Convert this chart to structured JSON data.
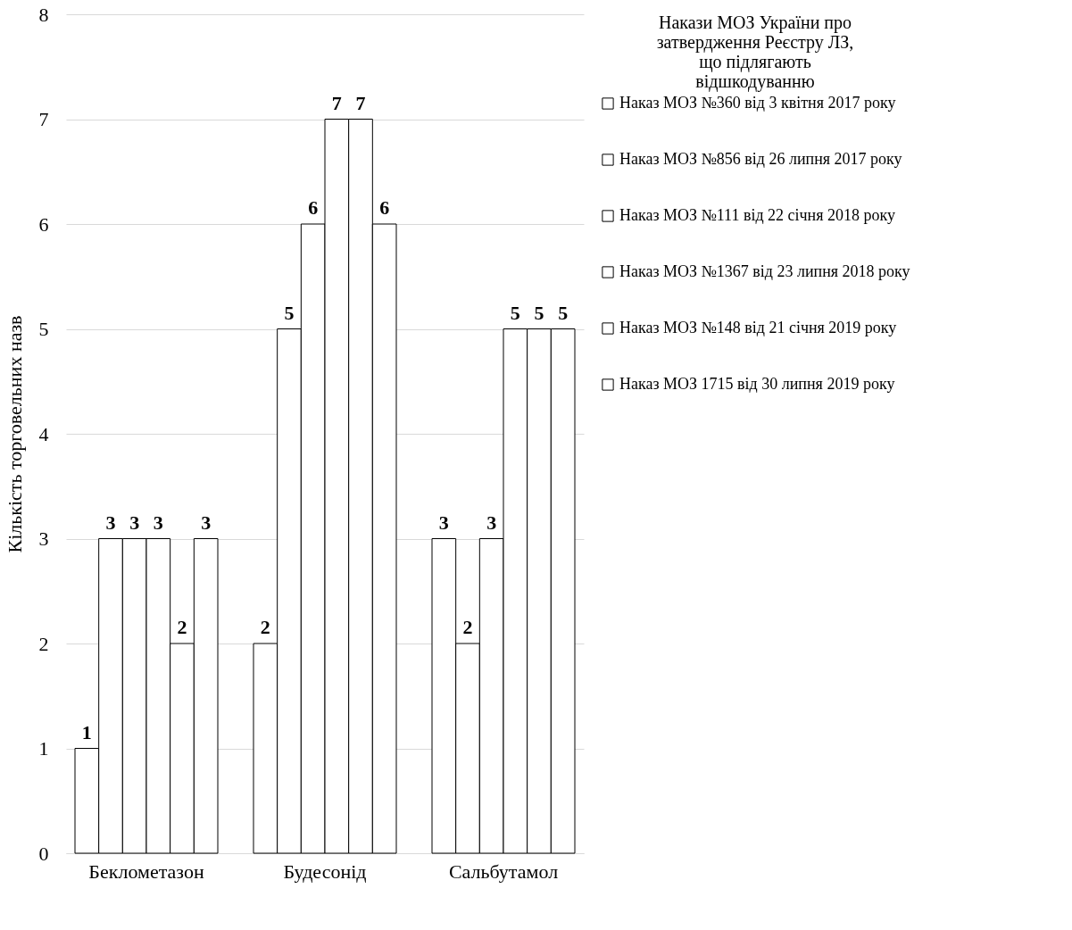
{
  "chart_data": {
    "type": "bar",
    "ylabel": "Кількість торговельних назв",
    "legend_title": "Накази МОЗ України про затвердження Реєстру ЛЗ, що підлягають відшкодуванню",
    "categories": [
      "Беклометазон",
      "Будесонід",
      "Сальбутамол"
    ],
    "series": [
      {
        "name": "Наказ МОЗ №360 від 3 квітня 2017 року",
        "color": "#ffffff",
        "values": [
          1,
          2,
          3
        ]
      },
      {
        "name": "Наказ МОЗ №856 від 26 липня 2017 року",
        "color": "#ffffff",
        "values": [
          3,
          5,
          2
        ]
      },
      {
        "name": "Наказ МОЗ №111 від 22 січня 2018 року",
        "color": "#ffffff",
        "values": [
          3,
          6,
          3
        ]
      },
      {
        "name": "Наказ МОЗ №1367 від 23 липня 2018 року",
        "color": "#ffffff",
        "values": [
          3,
          7,
          5
        ]
      },
      {
        "name": "Наказ МОЗ №148 від 21 січня 2019 року",
        "color": "#ffffff",
        "values": [
          2,
          7,
          5
        ]
      },
      {
        "name": "Наказ МОЗ 1715 від 30 липня 2019 року",
        "color": "#ffffff",
        "values": [
          3,
          6,
          5
        ]
      }
    ],
    "ylim": [
      0,
      8
    ],
    "yticks": [
      0,
      1,
      2,
      3,
      4,
      5,
      6,
      7,
      8
    ],
    "grid": "y",
    "legend": "right",
    "data_labels": true
  }
}
